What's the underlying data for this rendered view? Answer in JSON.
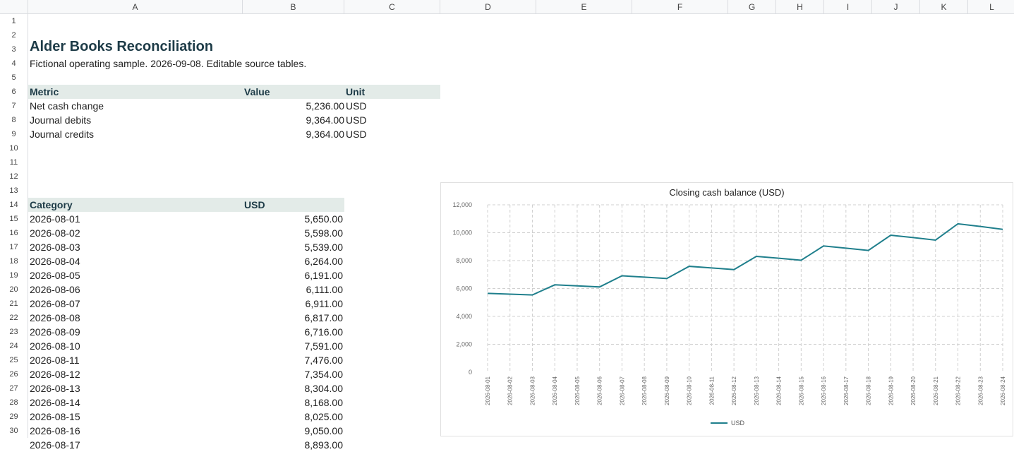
{
  "columns": [
    "A",
    "B",
    "C",
    "D",
    "E",
    "F",
    "G",
    "H",
    "I",
    "J",
    "K",
    "L"
  ],
  "rows": [
    "1",
    "2",
    "3",
    "4",
    "5",
    "6",
    "7",
    "8",
    "9",
    "10",
    "11",
    "12",
    "13",
    "14",
    "15",
    "16",
    "17",
    "18",
    "19",
    "20",
    "21",
    "22",
    "23",
    "24",
    "25",
    "26",
    "27",
    "28",
    "29",
    "30"
  ],
  "sheet": {
    "title": "Alder Books Reconciliation",
    "subtitle": "Fictional operating sample. 2026-09-08. Editable source tables.",
    "metrics_header": {
      "metric": "Metric",
      "value": "Value",
      "unit": "Unit"
    },
    "metrics": [
      {
        "metric": "Net cash change",
        "value": "5,236.00",
        "unit": "USD"
      },
      {
        "metric": "Journal debits",
        "value": "9,364.00",
        "unit": "USD"
      },
      {
        "metric": "Journal credits",
        "value": "9,364.00",
        "unit": "USD"
      }
    ],
    "table_header": {
      "category": "Category",
      "usd": "USD"
    },
    "table": [
      {
        "category": "2026-08-01",
        "usd": "5,650.00"
      },
      {
        "category": "2026-08-02",
        "usd": "5,598.00"
      },
      {
        "category": "2026-08-03",
        "usd": "5,539.00"
      },
      {
        "category": "2026-08-04",
        "usd": "6,264.00"
      },
      {
        "category": "2026-08-05",
        "usd": "6,191.00"
      },
      {
        "category": "2026-08-06",
        "usd": "6,111.00"
      },
      {
        "category": "2026-08-07",
        "usd": "6,911.00"
      },
      {
        "category": "2026-08-08",
        "usd": "6,817.00"
      },
      {
        "category": "2026-08-09",
        "usd": "6,716.00"
      },
      {
        "category": "2026-08-10",
        "usd": "7,591.00"
      },
      {
        "category": "2026-08-11",
        "usd": "7,476.00"
      },
      {
        "category": "2026-08-12",
        "usd": "7,354.00"
      },
      {
        "category": "2026-08-13",
        "usd": "8,304.00"
      },
      {
        "category": "2026-08-14",
        "usd": "8,168.00"
      },
      {
        "category": "2026-08-15",
        "usd": "8,025.00"
      },
      {
        "category": "2026-08-16",
        "usd": "9,050.00"
      },
      {
        "category": "2026-08-17",
        "usd": "8,893.00"
      }
    ]
  },
  "colors": {
    "line": "#1f7f8c",
    "title": "#1d3b47",
    "header_band": "#e3ebe8"
  },
  "chart_data": {
    "type": "line",
    "title": "Closing cash balance (USD)",
    "categories": [
      "2026-08-01",
      "2026-08-02",
      "2026-08-03",
      "2026-08-04",
      "2026-08-05",
      "2026-08-06",
      "2026-08-07",
      "2026-08-08",
      "2026-08-09",
      "2026-08-10",
      "2026-08-11",
      "2026-08-12",
      "2026-08-13",
      "2026-08-14",
      "2026-08-15",
      "2026-08-16",
      "2026-08-17",
      "2026-08-18",
      "2026-08-19",
      "2026-08-20",
      "2026-08-21",
      "2026-08-22",
      "2026-08-23",
      "2026-08-24"
    ],
    "series": [
      {
        "name": "USD",
        "values": [
          5650,
          5598,
          5539,
          6264,
          6191,
          6111,
          6911,
          6817,
          6716,
          7591,
          7476,
          7354,
          8304,
          8168,
          8025,
          9050,
          8893,
          8730,
          9820,
          9650,
          9470,
          10640,
          10450,
          10240
        ]
      }
    ],
    "ylim": [
      0,
      12000
    ],
    "yticks": [
      {
        "value": 0,
        "label": "0"
      },
      {
        "value": 2000,
        "label": "2,000"
      },
      {
        "value": 4000,
        "label": "4,000"
      },
      {
        "value": 6000,
        "label": "6,000"
      },
      {
        "value": 8000,
        "label": "8,000"
      },
      {
        "value": 10000,
        "label": "10,000"
      },
      {
        "value": 12000,
        "label": "12,000"
      }
    ],
    "grid": true,
    "legend": "bottom"
  }
}
